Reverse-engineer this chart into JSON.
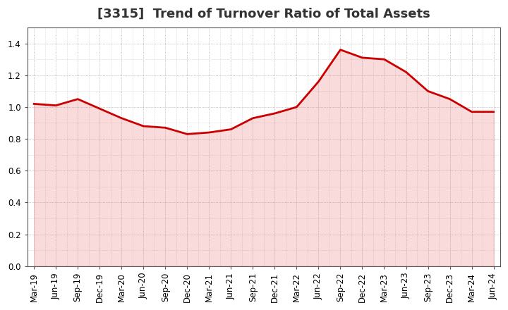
{
  "title": "[3315]  Trend of Turnover Ratio of Total Assets",
  "x_labels": [
    "Mar-19",
    "Jun-19",
    "Sep-19",
    "Dec-19",
    "Mar-20",
    "Jun-20",
    "Sep-20",
    "Dec-20",
    "Mar-21",
    "Jun-21",
    "Sep-21",
    "Dec-21",
    "Mar-22",
    "Jun-22",
    "Sep-22",
    "Dec-22",
    "Mar-23",
    "Jun-23",
    "Sep-23",
    "Dec-23",
    "Mar-24",
    "Jun-24"
  ],
  "y_values": [
    1.02,
    1.01,
    1.05,
    0.99,
    0.93,
    0.88,
    0.87,
    0.83,
    0.84,
    0.86,
    0.93,
    0.96,
    1.0,
    1.16,
    1.36,
    1.31,
    1.3,
    1.22,
    1.1,
    1.05,
    0.97,
    0.97
  ],
  "line_color": "#cc0000",
  "fill_color": "#e87070",
  "bg_color": "#ffffff",
  "plot_bg_color": "#ffffff",
  "grid_color": "#999999",
  "ylim": [
    0.0,
    1.5
  ],
  "yticks": [
    0.0,
    0.2,
    0.4,
    0.6,
    0.8,
    1.0,
    1.2,
    1.4
  ],
  "title_fontsize": 13,
  "tick_fontsize": 8.5
}
